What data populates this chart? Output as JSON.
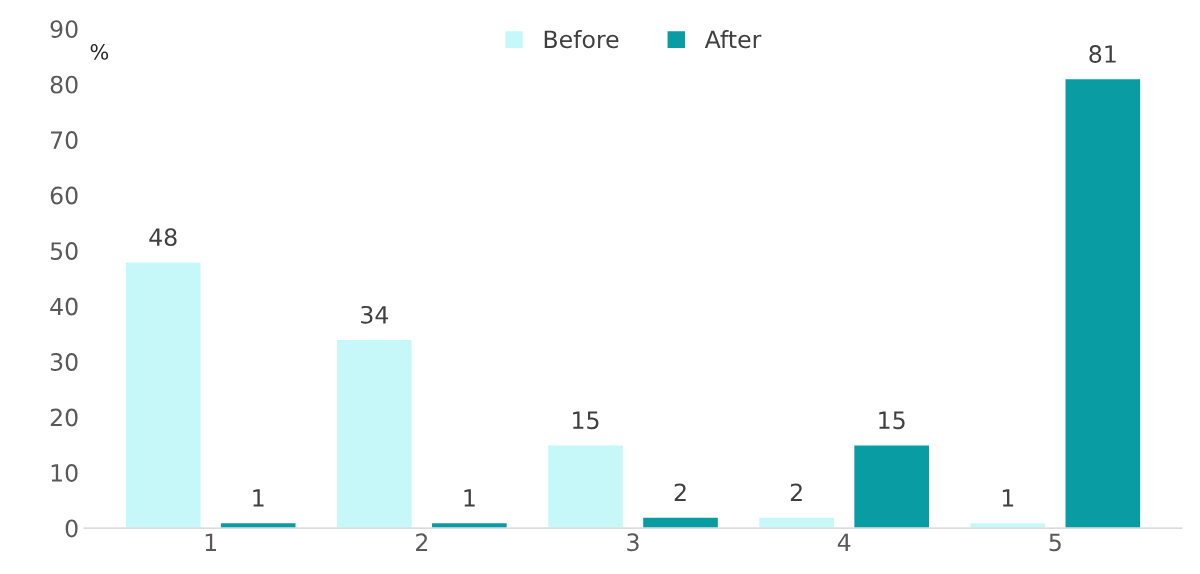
{
  "chart_data": {
    "type": "bar",
    "ylabel": "%",
    "categories": [
      "1",
      "2",
      "3",
      "4",
      "5"
    ],
    "series": [
      {
        "name": "Before",
        "color": "#c6f8fa",
        "values": [
          48,
          34,
          15,
          2,
          1
        ]
      },
      {
        "name": "After",
        "color": "#0a9ca3",
        "values": [
          1,
          1,
          2,
          15,
          81
        ]
      }
    ],
    "ylim": [
      0,
      90
    ],
    "yticks": [
      0,
      10,
      20,
      30,
      40,
      50,
      60,
      70,
      80,
      90
    ],
    "grid": false,
    "legend": "top",
    "data_labels": true
  }
}
